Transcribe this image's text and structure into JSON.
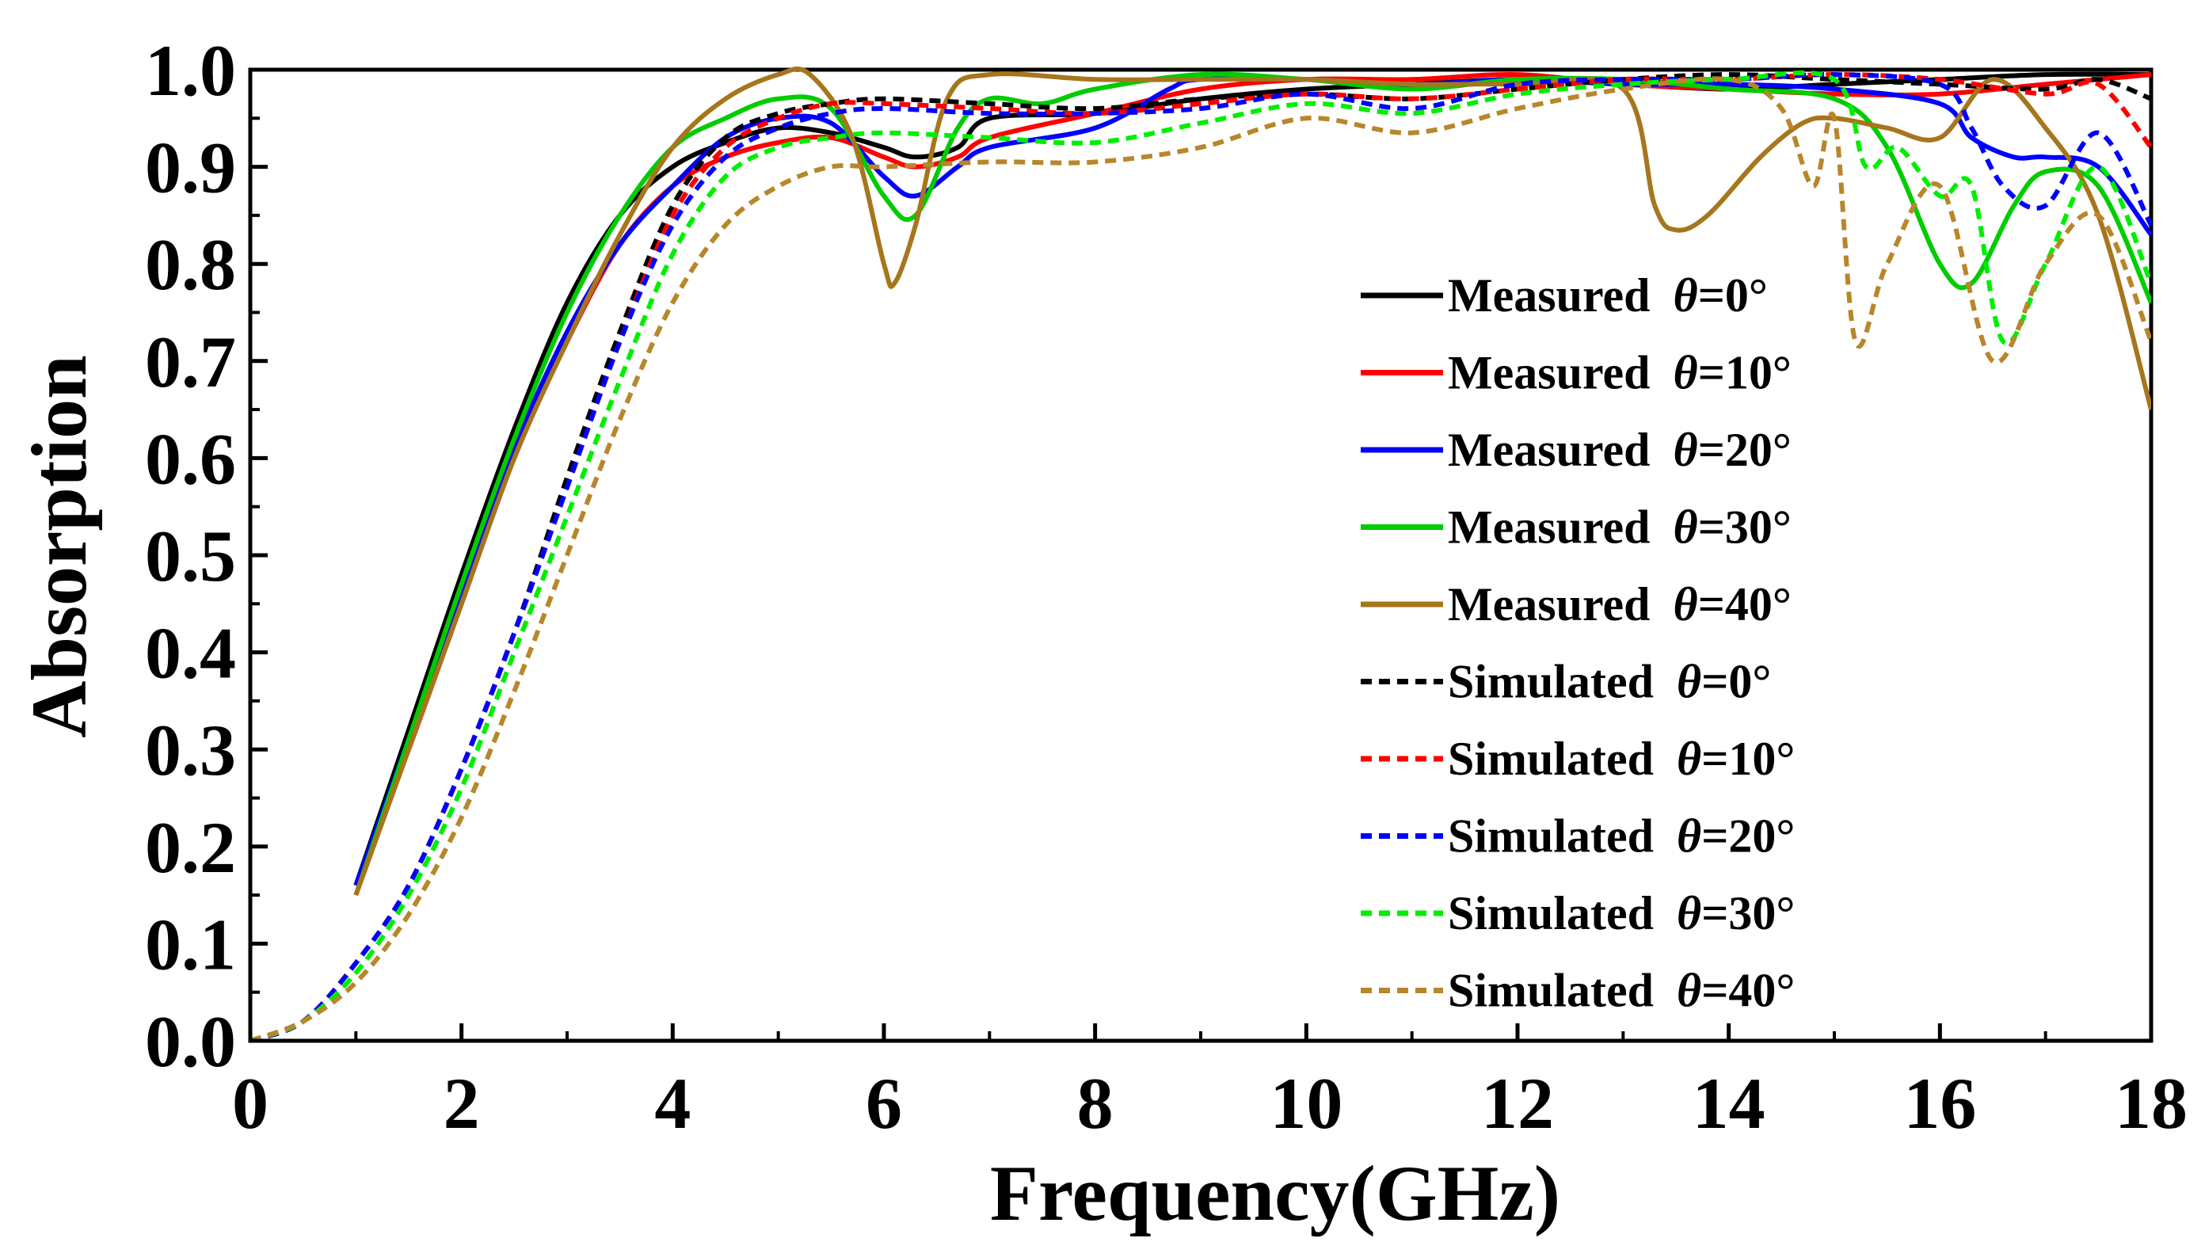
{
  "chart_data": {
    "type": "line",
    "title": "",
    "xlabel": "Frequency(GHz)",
    "ylabel": "Absorption",
    "xlim": [
      0,
      18
    ],
    "ylim": [
      0.0,
      1.0
    ],
    "x_ticks": [
      0,
      2,
      4,
      6,
      8,
      10,
      12,
      14,
      16,
      18
    ],
    "x_tick_labels": [
      "0",
      "2",
      "4",
      "6",
      "8",
      "10",
      "12",
      "14",
      "16",
      "18"
    ],
    "y_ticks": [
      0.0,
      0.1,
      0.2,
      0.3,
      0.4,
      0.5,
      0.6,
      0.7,
      0.8,
      0.9,
      1.0
    ],
    "y_tick_labels": [
      "0.0",
      "0.1",
      "0.2",
      "0.3",
      "0.4",
      "0.5",
      "0.6",
      "0.7",
      "0.8",
      "0.9",
      "1.0"
    ],
    "grid": false,
    "legend_position": "right",
    "series": [
      {
        "name": "Measured θ=0°",
        "label_text": "Measured",
        "angle_text": "=0°",
        "color": "#000000",
        "style": "solid",
        "points": [
          [
            1,
            0.16
          ],
          [
            1.5,
            0.32
          ],
          [
            2,
            0.48
          ],
          [
            2.5,
            0.63
          ],
          [
            3,
            0.76
          ],
          [
            3.5,
            0.85
          ],
          [
            4,
            0.9
          ],
          [
            4.5,
            0.925
          ],
          [
            5,
            0.94
          ],
          [
            5.5,
            0.935
          ],
          [
            6,
            0.92
          ],
          [
            6.3,
            0.91
          ],
          [
            6.7,
            0.92
          ],
          [
            7,
            0.95
          ],
          [
            8,
            0.955
          ],
          [
            9,
            0.97
          ],
          [
            10,
            0.98
          ],
          [
            11,
            0.985
          ],
          [
            12,
            0.99
          ],
          [
            13,
            0.985
          ],
          [
            14,
            0.98
          ],
          [
            15,
            0.985
          ],
          [
            16,
            0.99
          ],
          [
            17,
            0.995
          ],
          [
            18,
            0.995
          ]
        ]
      },
      {
        "name": "Measured θ=10°",
        "label_text": "Measured",
        "angle_text": "=10°",
        "color": "#ff0000",
        "style": "solid",
        "points": [
          [
            1,
            0.16
          ],
          [
            1.5,
            0.3
          ],
          [
            2,
            0.45
          ],
          [
            2.5,
            0.6
          ],
          [
            3,
            0.72
          ],
          [
            3.5,
            0.82
          ],
          [
            4,
            0.88
          ],
          [
            4.5,
            0.91
          ],
          [
            5,
            0.925
          ],
          [
            5.5,
            0.93
          ],
          [
            6,
            0.91
          ],
          [
            6.3,
            0.9
          ],
          [
            6.7,
            0.91
          ],
          [
            7,
            0.93
          ],
          [
            8,
            0.955
          ],
          [
            9,
            0.98
          ],
          [
            10,
            0.99
          ],
          [
            11,
            0.99
          ],
          [
            12,
            0.995
          ],
          [
            13,
            0.985
          ],
          [
            14,
            0.98
          ],
          [
            15,
            0.975
          ],
          [
            16,
            0.975
          ],
          [
            17,
            0.985
          ],
          [
            18,
            0.995
          ]
        ]
      },
      {
        "name": "Measured θ=20°",
        "label_text": "Measured",
        "angle_text": "=20°",
        "color": "#0000ff",
        "style": "solid",
        "points": [
          [
            1,
            0.16
          ],
          [
            1.5,
            0.31
          ],
          [
            2,
            0.46
          ],
          [
            2.5,
            0.61
          ],
          [
            3,
            0.73
          ],
          [
            3.5,
            0.82
          ],
          [
            4,
            0.88
          ],
          [
            4.5,
            0.93
          ],
          [
            5,
            0.95
          ],
          [
            5.5,
            0.945
          ],
          [
            6,
            0.89
          ],
          [
            6.3,
            0.87
          ],
          [
            6.7,
            0.9
          ],
          [
            7,
            0.92
          ],
          [
            8,
            0.94
          ],
          [
            8.7,
            0.98
          ],
          [
            9,
            0.99
          ],
          [
            10,
            0.99
          ],
          [
            11,
            0.985
          ],
          [
            12,
            0.99
          ],
          [
            13,
            0.985
          ],
          [
            14,
            0.985
          ],
          [
            15,
            0.98
          ],
          [
            16,
            0.965
          ],
          [
            16.3,
            0.93
          ],
          [
            16.7,
            0.91
          ],
          [
            17,
            0.91
          ],
          [
            17.5,
            0.9
          ],
          [
            18,
            0.83
          ]
        ]
      },
      {
        "name": "Measured θ=30°",
        "label_text": "Measured",
        "angle_text": "=30°",
        "color": "#00cc00",
        "style": "solid",
        "points": [
          [
            1,
            0.15
          ],
          [
            1.5,
            0.31
          ],
          [
            2,
            0.47
          ],
          [
            2.5,
            0.62
          ],
          [
            3,
            0.75
          ],
          [
            3.5,
            0.85
          ],
          [
            4,
            0.92
          ],
          [
            4.5,
            0.95
          ],
          [
            5,
            0.97
          ],
          [
            5.5,
            0.96
          ],
          [
            6,
            0.87
          ],
          [
            6.3,
            0.85
          ],
          [
            6.7,
            0.94
          ],
          [
            7,
            0.97
          ],
          [
            7.5,
            0.965
          ],
          [
            8,
            0.98
          ],
          [
            9,
            0.995
          ],
          [
            10,
            0.99
          ],
          [
            11,
            0.98
          ],
          [
            12,
            0.99
          ],
          [
            13,
            0.99
          ],
          [
            14,
            0.98
          ],
          [
            15,
            0.97
          ],
          [
            15.5,
            0.92
          ],
          [
            16,
            0.8
          ],
          [
            16.3,
            0.78
          ],
          [
            16.7,
            0.86
          ],
          [
            17,
            0.895
          ],
          [
            17.5,
            0.88
          ],
          [
            18,
            0.76
          ]
        ]
      },
      {
        "name": "Measured θ=40°",
        "label_text": "Measured",
        "angle_text": "=40°",
        "color": "#a6761d",
        "style": "solid",
        "points": [
          [
            1,
            0.15
          ],
          [
            1.5,
            0.3
          ],
          [
            2,
            0.45
          ],
          [
            2.5,
            0.6
          ],
          [
            3,
            0.72
          ],
          [
            3.5,
            0.83
          ],
          [
            4,
            0.92
          ],
          [
            4.5,
            0.97
          ],
          [
            5,
            0.995
          ],
          [
            5.3,
            0.995
          ],
          [
            5.7,
            0.93
          ],
          [
            6,
            0.8
          ],
          [
            6.1,
            0.78
          ],
          [
            6.3,
            0.84
          ],
          [
            6.6,
            0.97
          ],
          [
            7,
            0.995
          ],
          [
            8,
            0.99
          ],
          [
            9,
            0.99
          ],
          [
            10,
            0.99
          ],
          [
            11,
            0.985
          ],
          [
            12,
            0.985
          ],
          [
            13,
            0.98
          ],
          [
            13.3,
            0.86
          ],
          [
            13.5,
            0.835
          ],
          [
            13.8,
            0.85
          ],
          [
            14.3,
            0.91
          ],
          [
            14.7,
            0.945
          ],
          [
            15,
            0.95
          ],
          [
            15.5,
            0.94
          ],
          [
            16,
            0.93
          ],
          [
            16.5,
            0.99
          ],
          [
            17,
            0.94
          ],
          [
            17.5,
            0.85
          ],
          [
            18,
            0.65
          ]
        ]
      },
      {
        "name": "Simulated θ=0°",
        "label_text": "Simulated",
        "angle_text": "=0°",
        "color": "#000000",
        "style": "dashed",
        "points": [
          [
            0,
            0.0
          ],
          [
            0.5,
            0.02
          ],
          [
            1,
            0.08
          ],
          [
            1.5,
            0.16
          ],
          [
            2,
            0.28
          ],
          [
            2.5,
            0.42
          ],
          [
            3,
            0.58
          ],
          [
            3.5,
            0.73
          ],
          [
            4,
            0.86
          ],
          [
            4.5,
            0.93
          ],
          [
            5,
            0.955
          ],
          [
            5.5,
            0.965
          ],
          [
            6,
            0.97
          ],
          [
            7,
            0.965
          ],
          [
            8,
            0.96
          ],
          [
            9,
            0.97
          ],
          [
            10,
            0.975
          ],
          [
            11,
            0.97
          ],
          [
            12,
            0.98
          ],
          [
            13,
            0.99
          ],
          [
            14,
            0.995
          ],
          [
            15,
            0.99
          ],
          [
            16,
            0.985
          ],
          [
            17,
            0.98
          ],
          [
            17.5,
            0.99
          ],
          [
            18,
            0.97
          ]
        ]
      },
      {
        "name": "Simulated θ=10°",
        "label_text": "Simulated",
        "angle_text": "=10°",
        "color": "#ff0000",
        "style": "dashed",
        "points": [
          [
            0,
            0.0
          ],
          [
            0.5,
            0.02
          ],
          [
            1,
            0.08
          ],
          [
            1.5,
            0.16
          ],
          [
            2,
            0.28
          ],
          [
            2.5,
            0.42
          ],
          [
            3,
            0.57
          ],
          [
            3.5,
            0.72
          ],
          [
            4,
            0.85
          ],
          [
            4.5,
            0.92
          ],
          [
            5,
            0.95
          ],
          [
            5.5,
            0.965
          ],
          [
            6,
            0.965
          ],
          [
            7,
            0.96
          ],
          [
            8,
            0.955
          ],
          [
            9,
            0.965
          ],
          [
            10,
            0.975
          ],
          [
            11,
            0.97
          ],
          [
            12,
            0.98
          ],
          [
            13,
            0.99
          ],
          [
            14,
            0.99
          ],
          [
            15,
            0.995
          ],
          [
            16,
            0.99
          ],
          [
            17,
            0.975
          ],
          [
            17.5,
            0.985
          ],
          [
            18,
            0.92
          ]
        ]
      },
      {
        "name": "Simulated θ=20°",
        "label_text": "Simulated",
        "angle_text": "=20°",
        "color": "#0000ff",
        "style": "dashed",
        "points": [
          [
            0,
            0.0
          ],
          [
            0.5,
            0.02
          ],
          [
            1,
            0.08
          ],
          [
            1.5,
            0.16
          ],
          [
            2,
            0.28
          ],
          [
            2.5,
            0.42
          ],
          [
            3,
            0.57
          ],
          [
            3.5,
            0.72
          ],
          [
            4,
            0.84
          ],
          [
            4.5,
            0.91
          ],
          [
            5,
            0.94
          ],
          [
            5.5,
            0.955
          ],
          [
            6,
            0.96
          ],
          [
            7,
            0.955
          ],
          [
            8,
            0.955
          ],
          [
            9,
            0.96
          ],
          [
            10,
            0.975
          ],
          [
            11,
            0.96
          ],
          [
            12,
            0.985
          ],
          [
            13,
            0.99
          ],
          [
            14,
            0.99
          ],
          [
            15,
            0.995
          ],
          [
            16,
            0.985
          ],
          [
            16.3,
            0.94
          ],
          [
            16.6,
            0.88
          ],
          [
            17,
            0.86
          ],
          [
            17.5,
            0.935
          ],
          [
            18,
            0.84
          ]
        ]
      },
      {
        "name": "Simulated θ=30°",
        "label_text": "Simulated",
        "angle_text": "=30°",
        "color": "#00ee00",
        "style": "dashed",
        "points": [
          [
            0,
            0.0
          ],
          [
            0.5,
            0.02
          ],
          [
            1,
            0.07
          ],
          [
            1.5,
            0.15
          ],
          [
            2,
            0.26
          ],
          [
            2.5,
            0.4
          ],
          [
            3,
            0.54
          ],
          [
            3.5,
            0.68
          ],
          [
            4,
            0.81
          ],
          [
            4.5,
            0.89
          ],
          [
            5,
            0.92
          ],
          [
            5.5,
            0.93
          ],
          [
            6,
            0.935
          ],
          [
            7,
            0.93
          ],
          [
            8,
            0.925
          ],
          [
            9,
            0.945
          ],
          [
            10,
            0.965
          ],
          [
            11,
            0.955
          ],
          [
            12,
            0.975
          ],
          [
            13,
            0.985
          ],
          [
            14,
            0.99
          ],
          [
            15,
            0.99
          ],
          [
            15.3,
            0.9
          ],
          [
            15.6,
            0.92
          ],
          [
            16,
            0.87
          ],
          [
            16.3,
            0.88
          ],
          [
            16.6,
            0.72
          ],
          [
            17,
            0.8
          ],
          [
            17.5,
            0.9
          ],
          [
            18,
            0.78
          ]
        ]
      },
      {
        "name": "Simulated θ=40°",
        "label_text": "Simulated",
        "angle_text": "=40°",
        "color": "#b8862b",
        "style": "dashed",
        "points": [
          [
            0,
            0.0
          ],
          [
            0.5,
            0.02
          ],
          [
            1,
            0.06
          ],
          [
            1.5,
            0.13
          ],
          [
            2,
            0.23
          ],
          [
            2.5,
            0.36
          ],
          [
            3,
            0.5
          ],
          [
            3.5,
            0.64
          ],
          [
            4,
            0.76
          ],
          [
            4.5,
            0.84
          ],
          [
            5,
            0.88
          ],
          [
            5.5,
            0.9
          ],
          [
            6,
            0.9
          ],
          [
            7,
            0.905
          ],
          [
            8,
            0.905
          ],
          [
            9,
            0.92
          ],
          [
            10,
            0.95
          ],
          [
            11,
            0.935
          ],
          [
            12,
            0.96
          ],
          [
            13,
            0.98
          ],
          [
            14,
            0.99
          ],
          [
            14.5,
            0.96
          ],
          [
            14.8,
            0.88
          ],
          [
            15,
            0.95
          ],
          [
            15.2,
            0.72
          ],
          [
            15.5,
            0.8
          ],
          [
            16,
            0.88
          ],
          [
            16.5,
            0.7
          ],
          [
            17,
            0.8
          ],
          [
            17.5,
            0.85
          ],
          [
            18,
            0.72
          ]
        ]
      }
    ]
  }
}
